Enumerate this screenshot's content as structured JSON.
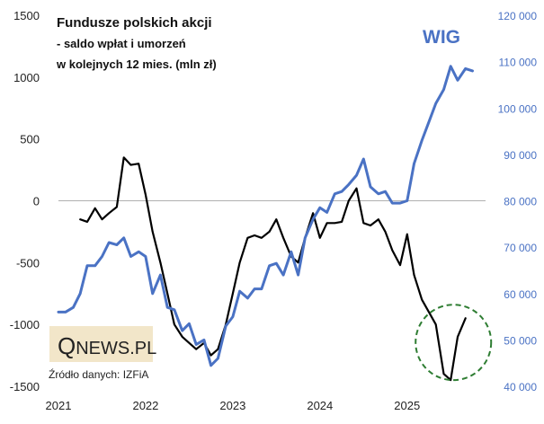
{
  "chart_data": {
    "type": "line",
    "title_lines": [
      "Fundusze polskich akcji",
      "- saldo wpłat i umorzeń",
      "w kolejnych 12 mies. (mln zł)"
    ],
    "series_label": "WIG",
    "source": "Źródło danych: IZFiA",
    "logo": {
      "q": "Q",
      "rest": "NEWS.PL"
    },
    "x_labels": [
      "2021",
      "2022",
      "2023",
      "2024",
      "2025"
    ],
    "x_range": [
      2021.0,
      2025.9
    ],
    "left_axis": {
      "range": [
        -1500,
        1500
      ],
      "ticks": [
        1500,
        1000,
        500,
        0,
        -500,
        -1000,
        -1500
      ],
      "tick_labels": [
        "1500",
        "1000",
        "500",
        "0",
        "-500",
        "-1000",
        "-1500"
      ]
    },
    "right_axis": {
      "range": [
        40000,
        120000
      ],
      "ticks": [
        120000,
        110000,
        100000,
        90000,
        80000,
        70000,
        60000,
        50000,
        40000
      ],
      "tick_labels": [
        "120 000",
        "110 000",
        "100 000",
        "90 000",
        "80 000",
        "70 000",
        "60 000",
        "50 000",
        "40 000"
      ]
    },
    "series": [
      {
        "name": "Saldo wpłat i umorzeń (mln zł)",
        "axis": "left",
        "color": "#000000",
        "x": [
          2021.25,
          2021.33,
          2021.42,
          2021.5,
          2021.58,
          2021.67,
          2021.75,
          2021.83,
          2021.92,
          2022.0,
          2022.08,
          2022.17,
          2022.25,
          2022.33,
          2022.42,
          2022.5,
          2022.58,
          2022.67,
          2022.75,
          2022.83,
          2022.92,
          2023.0,
          2023.08,
          2023.17,
          2023.25,
          2023.33,
          2023.42,
          2023.5,
          2023.58,
          2023.67,
          2023.75,
          2023.83,
          2023.92,
          2024.0,
          2024.08,
          2024.17,
          2024.25,
          2024.33,
          2024.42,
          2024.5,
          2024.58,
          2024.67,
          2024.75,
          2024.83,
          2024.92,
          2025.0,
          2025.08,
          2025.17,
          2025.25,
          2025.33,
          2025.42,
          2025.5,
          2025.58,
          2025.67
        ],
        "values": [
          -150,
          -170,
          -60,
          -150,
          -100,
          -50,
          350,
          290,
          300,
          50,
          -250,
          -500,
          -750,
          -1000,
          -1100,
          -1150,
          -1200,
          -1150,
          -1250,
          -1200,
          -1000,
          -750,
          -500,
          -300,
          -280,
          -300,
          -250,
          -150,
          -300,
          -450,
          -500,
          -300,
          -100,
          -300,
          -180,
          -180,
          -170,
          0,
          100,
          -180,
          -200,
          -150,
          -250,
          -400,
          -520,
          -270,
          -600,
          -800,
          -900,
          -1000,
          -1400,
          -1450,
          -1100,
          -950
        ],
        "highlight": {
          "x": 2025.5,
          "y": -1000,
          "style": "dashed green circle"
        }
      },
      {
        "name": "WIG",
        "axis": "right",
        "color": "#4a72c4",
        "x": [
          2021.0,
          2021.08,
          2021.17,
          2021.25,
          2021.33,
          2021.42,
          2021.5,
          2021.58,
          2021.67,
          2021.75,
          2021.83,
          2021.92,
          2022.0,
          2022.08,
          2022.17,
          2022.25,
          2022.33,
          2022.42,
          2022.5,
          2022.58,
          2022.67,
          2022.75,
          2022.83,
          2022.92,
          2023.0,
          2023.08,
          2023.17,
          2023.25,
          2023.33,
          2023.42,
          2023.5,
          2023.58,
          2023.67,
          2023.75,
          2023.83,
          2023.92,
          2024.0,
          2024.08,
          2024.17,
          2024.25,
          2024.33,
          2024.42,
          2024.5,
          2024.58,
          2024.67,
          2024.75,
          2024.83,
          2024.92,
          2025.0,
          2025.08,
          2025.17,
          2025.25,
          2025.33,
          2025.42,
          2025.5,
          2025.58,
          2025.67,
          2025.75
        ],
        "values": [
          56000,
          56000,
          57000,
          60000,
          66000,
          66000,
          68000,
          71000,
          70500,
          72000,
          68000,
          69000,
          68000,
          60000,
          64000,
          57000,
          56500,
          52000,
          53500,
          49000,
          50000,
          44500,
          46000,
          53000,
          55000,
          60500,
          59000,
          61000,
          61000,
          66000,
          66500,
          64000,
          69000,
          64000,
          72000,
          76000,
          78500,
          77500,
          81500,
          82000,
          83500,
          85500,
          89000,
          83000,
          81500,
          82000,
          79500,
          79500,
          80000,
          88000,
          93000,
          97000,
          101000,
          104000,
          109000,
          106000,
          108500,
          108000
        ]
      }
    ]
  }
}
